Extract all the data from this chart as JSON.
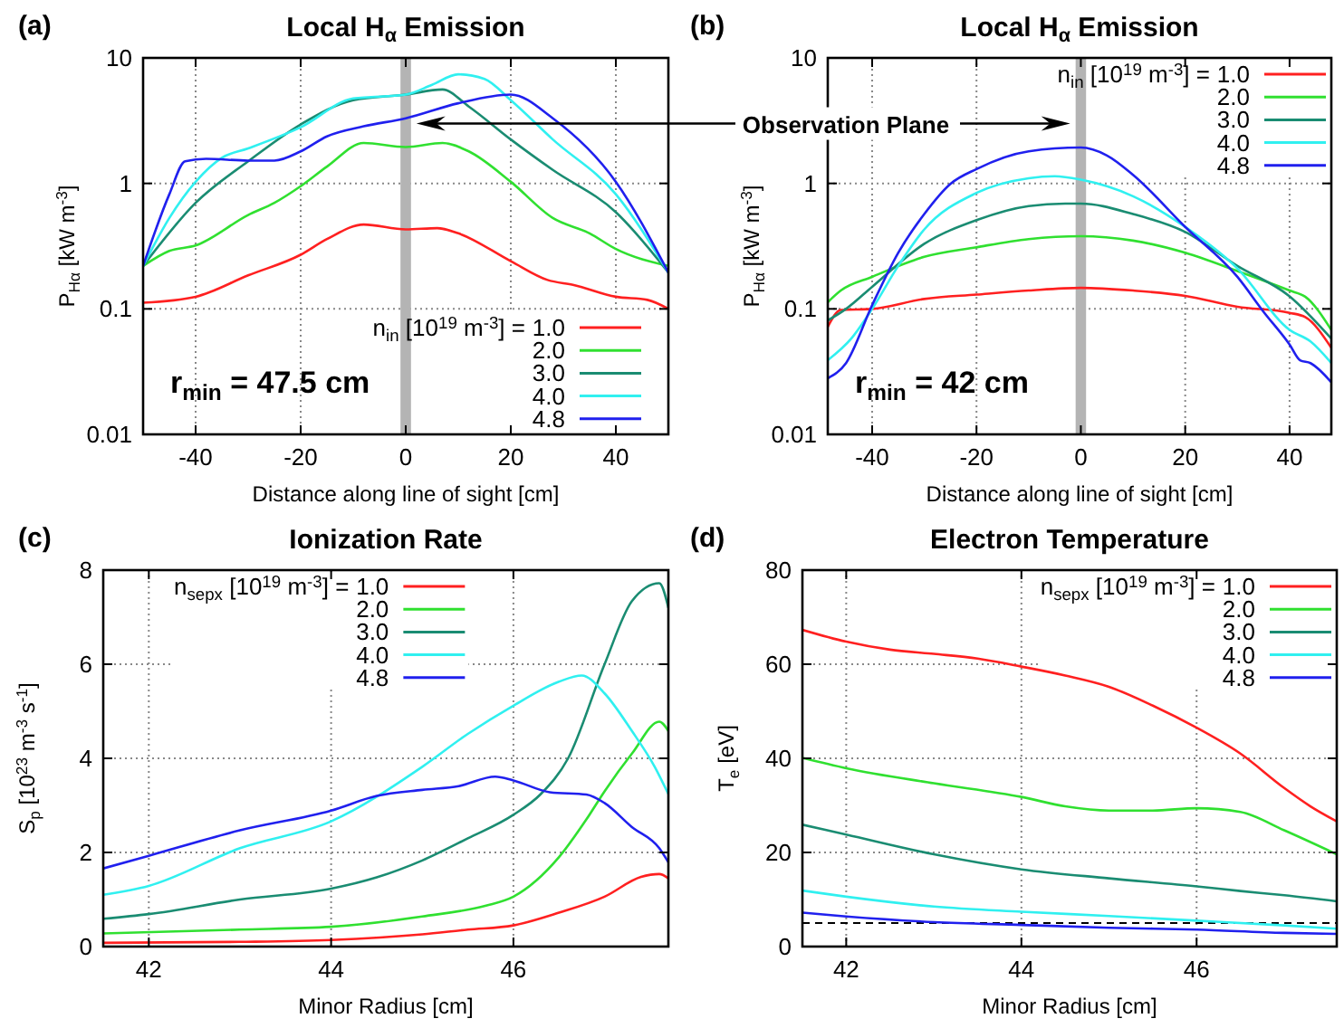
{
  "chart_data": [
    {
      "type": "line",
      "title": "Local H$_{α}$ Emission",
      "xlabel": "Distance along line of sight [cm]",
      "ylabel": "P$_{Hα}$ [kW m$^{-3}$]",
      "log": "y",
      "grid": true,
      "legend": "bottom right",
      "legend_title": "n$_{in}$ [10$^{19}$ m$^{-3}$] =",
      "xlim": [
        -50,
        50
      ],
      "xticks": [
        -40,
        -20,
        0,
        20,
        40
      ],
      "ylim": [
        0.01,
        10
      ],
      "yticks": [
        0.01,
        0.1,
        1,
        10
      ],
      "annotations": [
        "(a)",
        "r$_{min}$ = 47.5 cm",
        "Observation Plane"
      ],
      "bands": [
        {
          "axis": "x",
          "from": -1,
          "to": 1,
          "color": "#b4b4b4"
        }
      ],
      "x": [
        -50,
        -40,
        -30,
        -20,
        -15,
        -8,
        0,
        6,
        10,
        20,
        27,
        32,
        40,
        46,
        50
      ],
      "series": [
        {
          "name": "1.0",
          "color": "#ff2020",
          "values": [
            0.112,
            0.125,
            0.185,
            0.27,
            0.36,
            0.47,
            0.43,
            0.44,
            0.4,
            0.24,
            0.17,
            0.155,
            0.125,
            0.118,
            0.1
          ]
        },
        {
          "name": "2.0",
          "color": "#30e030",
          "x": [
            -50,
            -45,
            -40,
            -30,
            -25,
            -20,
            -15,
            -8,
            0,
            7,
            12,
            20,
            28,
            35,
            40,
            50
          ],
          "values": [
            0.22,
            0.29,
            0.32,
            0.56,
            0.7,
            0.95,
            1.36,
            2.1,
            1.95,
            2.1,
            1.8,
            1.03,
            0.53,
            0.4,
            0.3,
            0.22
          ]
        },
        {
          "name": "3.0",
          "color": "#1a8c72",
          "x": [
            -50,
            -40,
            -30,
            -20,
            -10,
            0,
            7,
            12,
            20,
            28,
            40,
            50
          ],
          "values": [
            0.22,
            0.7,
            1.5,
            2.95,
            4.6,
            5.1,
            5.6,
            4.1,
            2.24,
            1.28,
            0.59,
            0.195
          ]
        },
        {
          "name": "4.0",
          "color": "#30f0f0",
          "x": [
            -50,
            -45,
            -40,
            -35,
            -30,
            -20,
            -10,
            0,
            5,
            10,
            15,
            20,
            28,
            40,
            50
          ],
          "values": [
            0.22,
            0.53,
            1.03,
            1.6,
            1.9,
            2.8,
            4.75,
            5.1,
            6.1,
            7.4,
            6.8,
            4.6,
            2.24,
            0.82,
            0.195
          ]
        },
        {
          "name": "4.8",
          "color": "#2020ee",
          "x": [
            -50,
            -45,
            -42,
            -38,
            -30,
            -25,
            -20,
            -15,
            -8,
            0,
            10,
            20,
            28,
            40,
            50
          ],
          "values": [
            0.22,
            0.82,
            1.5,
            1.57,
            1.52,
            1.52,
            1.8,
            2.37,
            2.85,
            3.3,
            4.35,
            5.1,
            3.3,
            1.03,
            0.195
          ]
        }
      ]
    },
    {
      "type": "line",
      "title": "Local H$_{α}$ Emission",
      "xlabel": "Distance along line of sight [cm]",
      "ylabel": "P$_{Hα}$ [kW m$^{-3}$]",
      "log": "y",
      "grid": true,
      "legend": "top right",
      "legend_title": "n$_{in}$ [10$^{19}$ m$^{-3}$] =",
      "xlim": [
        -48.5,
        48
      ],
      "xticks": [
        -40,
        -20,
        0,
        20,
        40
      ],
      "ylim": [
        0.01,
        10
      ],
      "yticks": [
        0.01,
        0.1,
        1,
        10
      ],
      "annotations": [
        "(b)",
        "r$_{min}$ = 42 cm"
      ],
      "bands": [
        {
          "axis": "x",
          "from": -1,
          "to": 1,
          "color": "#b4b4b4"
        }
      ],
      "x": [
        -48.5,
        -46,
        -40,
        -30,
        -20,
        -10,
        0,
        10,
        20,
        30,
        40,
        43,
        48
      ],
      "series": [
        {
          "name": "1.0",
          "color": "#ff2020",
          "values": [
            0.072,
            0.098,
            0.1,
            0.12,
            0.13,
            0.14,
            0.147,
            0.14,
            0.127,
            0.104,
            0.093,
            0.086,
            0.049
          ]
        },
        {
          "name": "2.0",
          "color": "#30e030",
          "values": [
            0.113,
            0.14,
            0.18,
            0.26,
            0.31,
            0.36,
            0.38,
            0.35,
            0.28,
            0.2,
            0.14,
            0.125,
            0.068
          ]
        },
        {
          "name": "3.0",
          "color": "#1a8c72",
          "x": [
            -48.5,
            -45,
            -40,
            -30,
            -20,
            -10,
            -3,
            0,
            10,
            20,
            30,
            40,
            48
          ],
          "values": [
            0.081,
            0.1,
            0.15,
            0.33,
            0.51,
            0.66,
            0.69,
            0.69,
            0.57,
            0.41,
            0.22,
            0.126,
            0.058
          ]
        },
        {
          "name": "4.0",
          "color": "#30f0f0",
          "x": [
            -48.5,
            -44,
            -40,
            -35,
            -30,
            -20,
            -10,
            -5,
            0,
            10,
            20,
            30,
            40,
            44,
            48
          ],
          "values": [
            0.039,
            0.058,
            0.1,
            0.22,
            0.43,
            0.84,
            1.1,
            1.14,
            1.07,
            0.79,
            0.45,
            0.21,
            0.068,
            0.055,
            0.037
          ]
        },
        {
          "name": "4.8",
          "color": "#2020ee",
          "x": [
            -48.5,
            -45,
            -40,
            -35,
            -30,
            -25,
            -20,
            -10,
            0,
            5,
            10,
            20,
            30,
            35,
            40,
            42,
            44,
            48
          ],
          "values": [
            0.028,
            0.037,
            0.107,
            0.28,
            0.57,
            0.99,
            1.3,
            1.8,
            1.93,
            1.67,
            1.17,
            0.45,
            0.18,
            0.095,
            0.052,
            0.039,
            0.037,
            0.026
          ]
        }
      ]
    },
    {
      "type": "line",
      "title": "Ionization Rate",
      "xlabel": "Minor Radius [cm]",
      "ylabel": "S$_{p}$ [10$^{23}$ m$^{-3}$ s$^{-1}$]",
      "grid": true,
      "legend": "top",
      "legend_title": "n$_{sepx}$ [10$^{19}$ m$^{-3}$] =",
      "xlim": [
        41.5,
        47.7
      ],
      "xticks": [
        42,
        44,
        46
      ],
      "ylim": [
        0,
        8
      ],
      "yticks": [
        0,
        2,
        4,
        6,
        8
      ],
      "annotations": [
        "(c)"
      ],
      "series": [
        {
          "name": "1.0",
          "color": "#ff2020",
          "x": [
            41.5,
            43,
            44,
            45,
            45.5,
            46,
            46.5,
            47,
            47.4,
            47.6,
            47.7
          ],
          "values": [
            0.08,
            0.1,
            0.14,
            0.26,
            0.36,
            0.45,
            0.72,
            1.06,
            1.48,
            1.54,
            1.45
          ]
        },
        {
          "name": "2.0",
          "color": "#30e030",
          "x": [
            41.5,
            43,
            44,
            45,
            45.7,
            46,
            46.5,
            46.8,
            47,
            47.3,
            47.6,
            47.7
          ],
          "values": [
            0.28,
            0.36,
            0.42,
            0.64,
            0.87,
            1.06,
            1.9,
            2.7,
            3.3,
            4.1,
            4.78,
            4.58
          ]
        },
        {
          "name": "3.0",
          "color": "#1a8c72",
          "x": [
            41.5,
            42,
            43,
            44,
            44.5,
            45,
            45.5,
            46,
            46.3,
            46.6,
            47,
            47.3,
            47.6,
            47.7
          ],
          "values": [
            0.59,
            0.69,
            1.0,
            1.23,
            1.47,
            1.83,
            2.3,
            2.8,
            3.24,
            4.0,
            6.0,
            7.34,
            7.72,
            7.2
          ]
        },
        {
          "name": "4.0",
          "color": "#30f0f0",
          "x": [
            41.5,
            42,
            43,
            44,
            45,
            45.5,
            46,
            46.5,
            46.75,
            47,
            47.3,
            47.55,
            47.7
          ],
          "values": [
            1.1,
            1.29,
            2.09,
            2.66,
            3.82,
            4.52,
            5.12,
            5.63,
            5.76,
            5.38,
            4.58,
            3.82,
            3.24
          ]
        },
        {
          "name": "4.8",
          "color": "#2020ee",
          "x": [
            41.5,
            42,
            43,
            44,
            44.5,
            45,
            45.4,
            45.8,
            46,
            46.4,
            46.8,
            47,
            47.3,
            47.6,
            47.7
          ],
          "values": [
            1.66,
            1.93,
            2.47,
            2.89,
            3.2,
            3.33,
            3.41,
            3.61,
            3.53,
            3.28,
            3.23,
            3.05,
            2.54,
            2.09,
            1.79
          ]
        }
      ]
    },
    {
      "type": "line",
      "title": "Electron Temperature",
      "xlabel": "Minor Radius [cm]",
      "ylabel": "T$_{e}$ [eV]",
      "grid": true,
      "legend": "top right",
      "legend_title": "n$_{sepx}$ [10$^{19}$ m$^{-3}$] =",
      "xlim": [
        41.5,
        47.6
      ],
      "xticks": [
        42,
        44,
        46
      ],
      "ylim": [
        0,
        80
      ],
      "yticks": [
        0,
        20,
        40,
        60,
        80
      ],
      "annotations": [
        "(d)"
      ],
      "ref_lines": [
        {
          "axis": "y",
          "value": 5,
          "color": "#000000",
          "line_style": "dashed"
        }
      ],
      "series": [
        {
          "name": "1.0",
          "color": "#ff2020",
          "x": [
            41.5,
            42,
            42.5,
            43,
            43.5,
            44,
            44.5,
            45,
            45.5,
            46,
            46.5,
            47,
            47.3,
            47.6
          ],
          "values": [
            67.3,
            64.8,
            63.1,
            62.2,
            61.2,
            59.5,
            57.6,
            55.2,
            51.2,
            46.5,
            41,
            33.7,
            29.8,
            26.6
          ]
        },
        {
          "name": "2.0",
          "color": "#30e030",
          "x": [
            41.5,
            42,
            43,
            44,
            44.5,
            45,
            45.5,
            46,
            46.5,
            47,
            47.6
          ],
          "values": [
            40.1,
            37.9,
            34.7,
            31.8,
            29.8,
            28.9,
            28.9,
            29.4,
            28.6,
            24.7,
            19.6
          ]
        },
        {
          "name": "3.0",
          "color": "#1a8c72",
          "x": [
            41.5,
            42,
            43,
            44,
            45,
            46,
            46.5,
            47,
            47.6
          ],
          "values": [
            25.9,
            23.8,
            19.6,
            16.4,
            14.5,
            12.8,
            11.8,
            10.9,
            9.6
          ]
        },
        {
          "name": "4.0",
          "color": "#30f0f0",
          "x": [
            41.5,
            42,
            43,
            44,
            45,
            46,
            47,
            47.6
          ],
          "values": [
            11.9,
            10.6,
            8.5,
            7.4,
            6.5,
            5.5,
            4.5,
            3.8
          ]
        },
        {
          "name": "4.8",
          "color": "#2020ee",
          "x": [
            41.5,
            42,
            43,
            44,
            45,
            46,
            47,
            47.6
          ],
          "values": [
            7.2,
            6.4,
            5.2,
            4.6,
            4.0,
            3.6,
            2.9,
            2.7
          ]
        }
      ]
    }
  ]
}
